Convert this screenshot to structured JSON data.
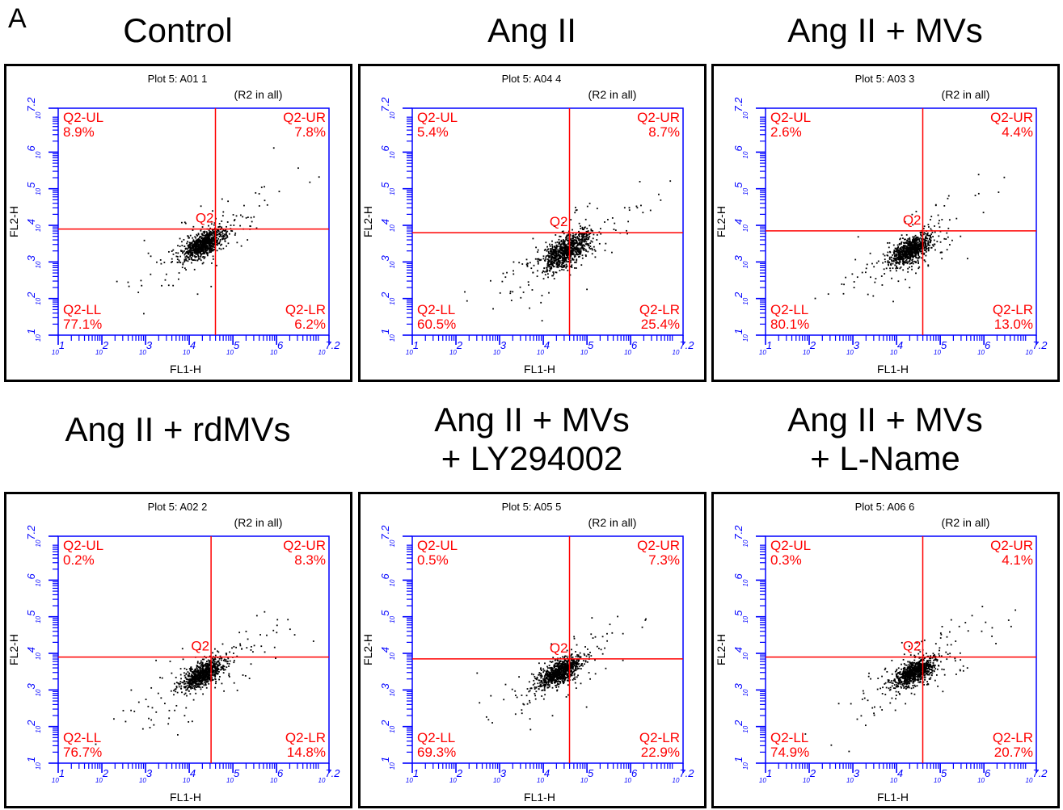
{
  "panel_label": "A",
  "colors": {
    "axis": "#0000ff",
    "gate": "#ff0000",
    "label": "#ff0000",
    "dots": "#000000",
    "frame": "#000000"
  },
  "chart_data": [
    {
      "type": "scatter",
      "condition": "Control",
      "title": "Plot 5: A01 1",
      "subtitle": "(R2 in all)",
      "xlabel": "FL1-H",
      "ylabel": "FL2-H",
      "scale": "log",
      "xlim": [
        1,
        7.2
      ],
      "ylim": [
        1,
        7.2
      ],
      "x_ticks": [
        "1",
        "2",
        "3",
        "4",
        "5",
        "6",
        "7.2"
      ],
      "y_ticks": [
        "1",
        "2",
        "3",
        "4",
        "5",
        "6",
        "7.2"
      ],
      "gate_label": "Q2",
      "gate": {
        "x": 4.6,
        "y": 3.9
      },
      "quadrants": [
        {
          "name": "Q2-UL",
          "percent": "8.9%"
        },
        {
          "name": "Q2-UR",
          "percent": "7.8%"
        },
        {
          "name": "Q2-LL",
          "percent": "77.1%"
        },
        {
          "name": "Q2-LR",
          "percent": "6.2%"
        }
      ],
      "cluster": {
        "cx": 4.3,
        "cy": 3.5
      }
    },
    {
      "type": "scatter",
      "condition": "Ang II",
      "title": "Plot 5: A04 4",
      "subtitle": "(R2 in all)",
      "xlabel": "FL1-H",
      "ylabel": "FL2-H",
      "scale": "log",
      "xlim": [
        1,
        7.2
      ],
      "ylim": [
        1,
        7.2
      ],
      "x_ticks": [
        "1",
        "2",
        "3",
        "4",
        "5",
        "6",
        "7.2"
      ],
      "y_ticks": [
        "1",
        "2",
        "3",
        "4",
        "5",
        "6",
        "7.2"
      ],
      "gate_label": "Q2",
      "gate": {
        "x": 4.6,
        "y": 3.8
      },
      "quadrants": [
        {
          "name": "Q2-UL",
          "percent": "5.4%"
        },
        {
          "name": "Q2-UR",
          "percent": "8.7%"
        },
        {
          "name": "Q2-LL",
          "percent": "60.5%"
        },
        {
          "name": "Q2-LR",
          "percent": "25.4%"
        }
      ],
      "cluster": {
        "cx": 4.5,
        "cy": 3.3
      }
    },
    {
      "type": "scatter",
      "condition": "Ang II + MVs",
      "title": "Plot 5: A03 3",
      "subtitle": "(R2 in all)",
      "xlabel": "FL1-H",
      "ylabel": "FL2-H",
      "scale": "log",
      "xlim": [
        1,
        7.2
      ],
      "ylim": [
        1,
        7.2
      ],
      "x_ticks": [
        "1",
        "2",
        "3",
        "4",
        "5",
        "6",
        "7.2"
      ],
      "y_ticks": [
        "1",
        "2",
        "3",
        "4",
        "5",
        "6",
        "7.2"
      ],
      "gate_label": "Q2",
      "gate": {
        "x": 4.6,
        "y": 3.85
      },
      "quadrants": [
        {
          "name": "Q2-UL",
          "percent": "2.6%"
        },
        {
          "name": "Q2-UR",
          "percent": "4.4%"
        },
        {
          "name": "Q2-LL",
          "percent": "80.1%"
        },
        {
          "name": "Q2-LR",
          "percent": "13.0%"
        }
      ],
      "cluster": {
        "cx": 4.3,
        "cy": 3.35
      }
    },
    {
      "type": "scatter",
      "condition": "Ang II + rdMVs",
      "title": "Plot 5: A02 2",
      "subtitle": "(R2 in all)",
      "xlabel": "FL1-H",
      "ylabel": "FL2-H",
      "scale": "log",
      "xlim": [
        1,
        7.2
      ],
      "ylim": [
        1,
        7.2
      ],
      "x_ticks": [
        "1",
        "2",
        "3",
        "4",
        "5",
        "6",
        "7.2"
      ],
      "y_ticks": [
        "1",
        "2",
        "3",
        "4",
        "5",
        "6",
        "7.2"
      ],
      "gate_label": "Q2",
      "gate": {
        "x": 4.5,
        "y": 3.9
      },
      "quadrants": [
        {
          "name": "Q2-UL",
          "percent": "0.2%"
        },
        {
          "name": "Q2-UR",
          "percent": "8.3%"
        },
        {
          "name": "Q2-LL",
          "percent": "76.7%"
        },
        {
          "name": "Q2-LR",
          "percent": "14.8%"
        }
      ],
      "cluster": {
        "cx": 4.3,
        "cy": 3.45
      }
    },
    {
      "type": "scatter",
      "condition": "Ang II + MVs + LY294002",
      "condition_lines": [
        "Ang II + MVs",
        "+ LY294002"
      ],
      "title": "Plot 5: A05 5",
      "subtitle": "(R2 in all)",
      "xlabel": "FL1-H",
      "ylabel": "FL2-H",
      "scale": "log",
      "xlim": [
        1,
        7.2
      ],
      "ylim": [
        1,
        7.2
      ],
      "x_ticks": [
        "1",
        "2",
        "3",
        "4",
        "5",
        "6",
        "7.2"
      ],
      "y_ticks": [
        "1",
        "2",
        "3",
        "4",
        "5",
        "6",
        "7.2"
      ],
      "gate_label": "Q2",
      "gate": {
        "x": 4.6,
        "y": 3.85
      },
      "quadrants": [
        {
          "name": "Q2-UL",
          "percent": "0.5%"
        },
        {
          "name": "Q2-UR",
          "percent": "7.3%"
        },
        {
          "name": "Q2-LL",
          "percent": "69.3%"
        },
        {
          "name": "Q2-LR",
          "percent": "22.9%"
        }
      ],
      "cluster": {
        "cx": 4.35,
        "cy": 3.5
      }
    },
    {
      "type": "scatter",
      "condition": "Ang II + MVs + L-Name",
      "condition_lines": [
        "Ang II + MVs",
        "+ L-Name"
      ],
      "title": "Plot 5: A06 6",
      "subtitle": "(R2 in all)",
      "xlabel": "FL1-H",
      "ylabel": "FL2-H",
      "scale": "log",
      "xlim": [
        1,
        7.2
      ],
      "ylim": [
        1,
        7.2
      ],
      "x_ticks": [
        "1",
        "2",
        "3",
        "4",
        "5",
        "6",
        "7.2"
      ],
      "y_ticks": [
        "1",
        "2",
        "3",
        "4",
        "5",
        "6",
        "7.2"
      ],
      "gate_label": "Q2",
      "gate": {
        "x": 4.6,
        "y": 3.9
      },
      "quadrants": [
        {
          "name": "Q2-UL",
          "percent": "0.3%"
        },
        {
          "name": "Q2-UR",
          "percent": "4.1%"
        },
        {
          "name": "Q2-LL",
          "percent": "74.9%"
        },
        {
          "name": "Q2-LR",
          "percent": "20.7%"
        }
      ],
      "cluster": {
        "cx": 4.4,
        "cy": 3.5
      }
    }
  ]
}
